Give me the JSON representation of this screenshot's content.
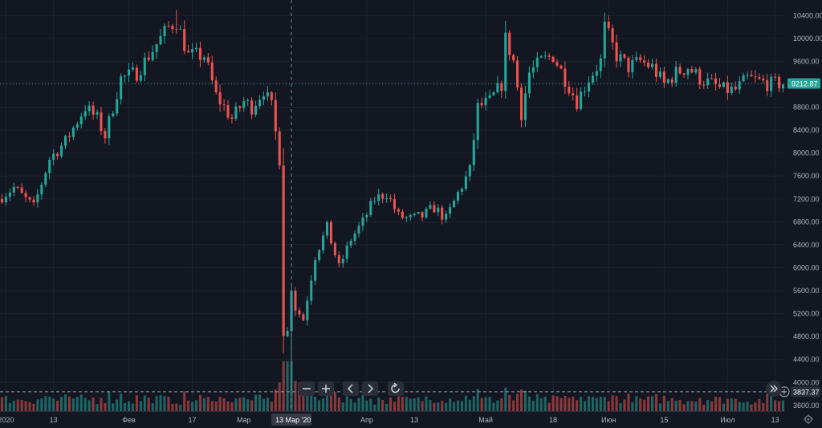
{
  "chart_data": {
    "type": "candlestick",
    "title": "",
    "ylim": [
      3500,
      10600
    ],
    "y_ticks": [
      3600,
      4000,
      4400,
      4800,
      5200,
      5600,
      6000,
      6400,
      6800,
      7200,
      7600,
      8000,
      8400,
      8800,
      9200,
      9600,
      10000,
      10400
    ],
    "y_tick_labels": [
      "3600.00",
      "4000.00",
      "4400.00",
      "4800.00",
      "5200.00",
      "5600.00",
      "6000.00",
      "6400.00",
      "6800.00",
      "7200.00",
      "7600.00",
      "8000.00",
      "8400.00",
      "8800.00",
      "9200.00",
      "9600.00",
      "10000.00",
      "10400.00"
    ],
    "x_tick_labels": [
      "2020",
      "13",
      "Фев",
      "17",
      "Мар",
      "Апр",
      "13",
      "Май",
      "18",
      "Июн",
      "15",
      "Июл",
      "13"
    ],
    "x_tick_days": [
      1,
      13,
      32,
      48,
      61,
      92,
      104,
      122,
      139,
      153,
      167,
      183,
      195
    ],
    "crosshair_label": "13 Мар '20",
    "crosshair_day": 73,
    "last_price": 9212.87,
    "last_price_label": "9212.87",
    "horizontal_line_price": 3837.37,
    "horizontal_line_label": "3837.37",
    "up_color": "#26a69a",
    "down_color": "#ef5350",
    "volume_ylim": [
      0,
      1.0
    ],
    "key_candles": [
      {
        "date": "1 Jan",
        "day": 1,
        "close": 7200
      },
      {
        "date": "14 Feb",
        "day": 45,
        "high": 10500,
        "close": 10300
      },
      {
        "date": "29 Feb",
        "day": 60,
        "close": 8600
      },
      {
        "date": "7 Mar",
        "day": 67,
        "close": 9100
      },
      {
        "date": "12 Mar",
        "day": 72,
        "open": 7900,
        "close": 4900
      },
      {
        "date": "13 Mar",
        "day": 73,
        "low": 3850,
        "close": 5600
      },
      {
        "date": "30 Apr",
        "day": 121,
        "close": 8800
      },
      {
        "date": "7 May",
        "day": 128,
        "close": 10000
      },
      {
        "date": "1 Jun",
        "day": 153,
        "high": 10400,
        "close": 10200
      },
      {
        "date": "15 Jul",
        "day": 197,
        "close": 9212.87
      }
    ]
  },
  "controls": {
    "zoom_out_icon": "minus-icon",
    "zoom_in_icon": "plus-icon",
    "scroll_left_icon": "chevron-left-icon",
    "scroll_right_icon": "chevron-right-icon",
    "reset_icon": "reset-icon",
    "jump_to_realtime_icon": "double-chevron-right-icon",
    "settings_icon": "gear-icon",
    "add_alert_icon": "plus-circle-icon"
  },
  "colors": {
    "background": "#131722",
    "grid": "#1e222d",
    "axis_text": "#b2b5be",
    "crosshair": "#758696"
  }
}
